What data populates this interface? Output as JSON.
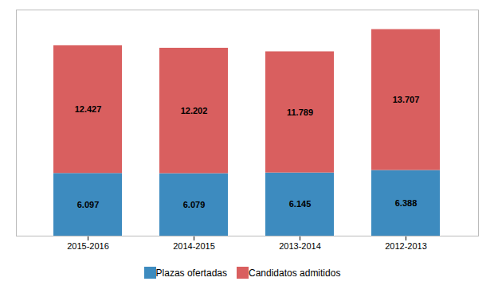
{
  "chart_data": {
    "type": "bar",
    "categories": [
      "2015-2016",
      "2014-2015",
      "2013-2014",
      "2012-2013"
    ],
    "series": [
      {
        "name": "Plazas ofertadas",
        "color": "#3d8bbf",
        "values": [
          6097,
          6079,
          6145,
          6388
        ],
        "value_labels": [
          "6.097",
          "6.079",
          "6.145",
          "6.388"
        ]
      },
      {
        "name": "Candidatos admitidos",
        "color": "#d95f5f",
        "values": [
          12427,
          12202,
          11789,
          13707
        ],
        "value_labels": [
          "12.427",
          "12.202",
          "11.789",
          "13.707"
        ]
      }
    ],
    "stacked": true,
    "ylim": [
      0,
      22000
    ],
    "grid": false,
    "tick_labels": "x",
    "data_labels": true,
    "legend": "bottom"
  }
}
